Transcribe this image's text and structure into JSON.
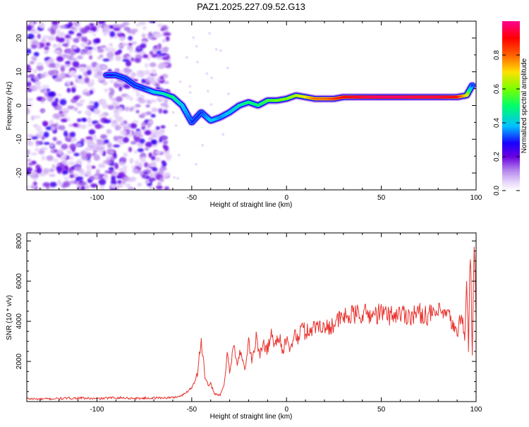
{
  "figure": {
    "title": "PAZ1.2025.227.09.52.G13"
  },
  "chart_data": [
    {
      "type": "heatmap",
      "xlabel": "Height of straight line (km)",
      "ylabel": "Frequency (Hz)",
      "xlim": [
        -137,
        100
      ],
      "ylim": [
        -25,
        25
      ],
      "x_ticks": [
        -100,
        -50,
        0,
        50,
        100
      ],
      "y_ticks": [
        -20,
        -10,
        0,
        10,
        20
      ],
      "colorbar": {
        "label": "Normalized spectral amplitude",
        "range": [
          0,
          1
        ],
        "ticks": [
          "0.0",
          "0.2",
          "0.4",
          "0.6",
          "0.8"
        ],
        "colors": [
          "#ffffff",
          "#c9a2f0",
          "#7a00e0",
          "#1a00ff",
          "#00bfff",
          "#00ff6a",
          "#aaff00",
          "#ffd200",
          "#ff6000",
          "#ff0000",
          "#ff0090"
        ]
      },
      "ridge": [
        {
          "x": -95,
          "y": 9,
          "amp": 0.25
        },
        {
          "x": -90,
          "y": 9,
          "amp": 0.3
        },
        {
          "x": -85,
          "y": 8,
          "amp": 0.3
        },
        {
          "x": -80,
          "y": 6,
          "amp": 0.3
        },
        {
          "x": -75,
          "y": 5,
          "amp": 0.3
        },
        {
          "x": -70,
          "y": 4,
          "amp": 0.4
        },
        {
          "x": -65,
          "y": 3.5,
          "amp": 0.45
        },
        {
          "x": -60,
          "y": 2.5,
          "amp": 0.5
        },
        {
          "x": -55,
          "y": 0,
          "amp": 0.4
        },
        {
          "x": -50,
          "y": -5,
          "amp": 0.3
        },
        {
          "x": -45,
          "y": -2,
          "amp": 0.3
        },
        {
          "x": -40,
          "y": -4.5,
          "amp": 0.4
        },
        {
          "x": -35,
          "y": -3.5,
          "amp": 0.35
        },
        {
          "x": -30,
          "y": -2,
          "amp": 0.4
        },
        {
          "x": -25,
          "y": 0,
          "amp": 0.45
        },
        {
          "x": -20,
          "y": 1,
          "amp": 0.5
        },
        {
          "x": -15,
          "y": 0,
          "amp": 0.5
        },
        {
          "x": -10,
          "y": 1.5,
          "amp": 0.55
        },
        {
          "x": -5,
          "y": 1.5,
          "amp": 0.6
        },
        {
          "x": 0,
          "y": 2,
          "amp": 0.6
        },
        {
          "x": 5,
          "y": 3,
          "amp": 0.65
        },
        {
          "x": 10,
          "y": 2.5,
          "amp": 0.7
        },
        {
          "x": 15,
          "y": 2,
          "amp": 0.8
        },
        {
          "x": 20,
          "y": 2,
          "amp": 0.8
        },
        {
          "x": 25,
          "y": 2,
          "amp": 0.85
        },
        {
          "x": 30,
          "y": 2.5,
          "amp": 0.9
        },
        {
          "x": 40,
          "y": 2.5,
          "amp": 0.95
        },
        {
          "x": 50,
          "y": 2.5,
          "amp": 0.98
        },
        {
          "x": 60,
          "y": 2.5,
          "amp": 0.98
        },
        {
          "x": 70,
          "y": 2.5,
          "amp": 0.95
        },
        {
          "x": 80,
          "y": 2.5,
          "amp": 0.95
        },
        {
          "x": 90,
          "y": 2.5,
          "amp": 0.9
        },
        {
          "x": 95,
          "y": 3,
          "amp": 0.7
        },
        {
          "x": 98,
          "y": 6,
          "amp": 0.3
        }
      ]
    },
    {
      "type": "line",
      "xlabel": "Height of straight line (km)",
      "ylabel": "SNR (10 * v/v)",
      "xlim": [
        -137,
        100
      ],
      "ylim": [
        0,
        8400
      ],
      "x_ticks": [
        -100,
        -50,
        0,
        50,
        100
      ],
      "y_ticks": [
        2000,
        4000,
        6000,
        8000
      ],
      "series": [
        {
          "color": "#e8322d",
          "x": [
            -137,
            -130,
            -120,
            -110,
            -100,
            -90,
            -80,
            -70,
            -60,
            -55,
            -50,
            -47,
            -45,
            -43,
            -41,
            -40,
            -38,
            -35,
            -33,
            -31,
            -30,
            -28,
            -26,
            -24,
            -22,
            -20,
            -18,
            -16,
            -14,
            -12,
            -10,
            -8,
            -6,
            -4,
            -2,
            0,
            2,
            4,
            6,
            8,
            10,
            12,
            15,
            18,
            20,
            25,
            30,
            35,
            40,
            45,
            50,
            55,
            60,
            65,
            70,
            75,
            80,
            85,
            88,
            90,
            92,
            94,
            95,
            96,
            97,
            98,
            99,
            100
          ],
          "y": [
            150,
            120,
            150,
            180,
            140,
            200,
            160,
            180,
            200,
            300,
            700,
            1400,
            3100,
            1200,
            700,
            900,
            400,
            300,
            800,
            2500,
            1500,
            2800,
            1800,
            2600,
            1600,
            2900,
            2000,
            3200,
            2300,
            2900,
            2600,
            3400,
            2800,
            3300,
            2600,
            3000,
            2500,
            3500,
            3000,
            3800,
            3400,
            3600,
            3700,
            3900,
            3600,
            3900,
            4200,
            4300,
            4400,
            4300,
            4400,
            4300,
            4400,
            4300,
            4400,
            4300,
            4400,
            4300,
            3800,
            3200,
            4600,
            3000,
            6200,
            2600,
            7900,
            2100,
            8300,
            4100
          ]
        }
      ]
    }
  ]
}
